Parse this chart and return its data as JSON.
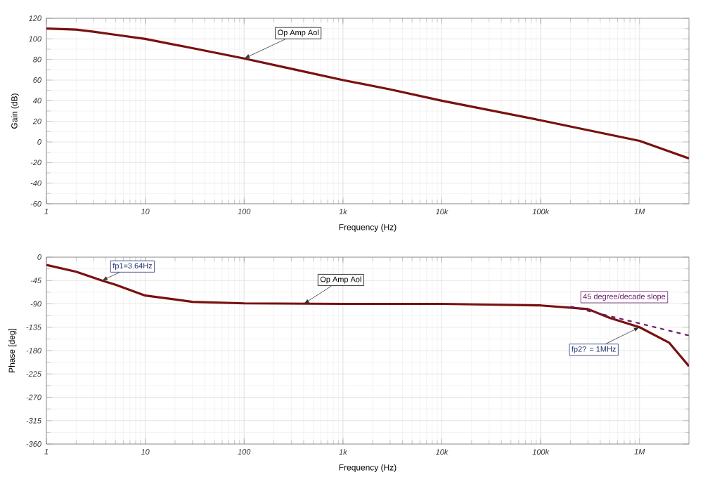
{
  "chart_data": [
    {
      "type": "line",
      "xlabel": "Frequency (Hz)",
      "ylabel": "Gain (dB)",
      "log": "x",
      "grid": true,
      "marker": "none",
      "xlim": [
        1,
        3160000
      ],
      "ylim": [
        -60,
        120
      ],
      "xticks": [
        {
          "value": 1,
          "label": "1"
        },
        {
          "value": 10,
          "label": "10"
        },
        {
          "value": 100,
          "label": "100"
        },
        {
          "value": 1000,
          "label": "1k"
        },
        {
          "value": 10000,
          "label": "10k"
        },
        {
          "value": 100000,
          "label": "100k"
        },
        {
          "value": 1000000,
          "label": "1M"
        }
      ],
      "yticks": [
        -60,
        -40,
        -20,
        0,
        20,
        40,
        60,
        80,
        100,
        120
      ],
      "x": [
        1,
        2,
        3,
        5,
        10,
        30,
        100,
        300,
        1000,
        3000,
        10000,
        100000,
        1000000,
        3160000
      ],
      "series": [
        {
          "color": "#7a1010",
          "values": [
            110,
            109,
            107,
            104,
            100,
            91,
            81,
            71,
            60,
            51,
            40,
            21,
            1,
            -16
          ]
        }
      ],
      "annotations": [
        {
          "text": "Op Amp Aol",
          "x": 100,
          "y": 81
        }
      ]
    },
    {
      "type": "line",
      "xlabel": "Frequency (Hz)",
      "ylabel": "Phase [deg]",
      "log": "x",
      "grid": true,
      "marker": "none",
      "xlim": [
        1,
        3160000
      ],
      "ylim": [
        -360,
        0
      ],
      "xticks": [
        {
          "value": 1,
          "label": "1"
        },
        {
          "value": 10,
          "label": "10"
        },
        {
          "value": 100,
          "label": "100"
        },
        {
          "value": 1000,
          "label": "1k"
        },
        {
          "value": 10000,
          "label": "10k"
        },
        {
          "value": 100000,
          "label": "100k"
        },
        {
          "value": 1000000,
          "label": "1M"
        }
      ],
      "yticks": [
        -360,
        -315,
        -270,
        -225,
        -180,
        -135,
        -90,
        -45,
        0
      ],
      "x": [
        1,
        2,
        3.64,
        5,
        10,
        30,
        100,
        1000,
        10000,
        100000,
        300000,
        500000,
        1000000,
        2000000,
        3160000
      ],
      "series": [
        {
          "color": "#7a1010",
          "values": [
            -15,
            -28,
            -45,
            -53,
            -74,
            -86,
            -89,
            -90,
            -90,
            -93,
            -100,
            -117,
            -135,
            -165,
            -210
          ]
        },
        {
          "color": "#6b1d6b",
          "line_style": "dashed",
          "x": [
            200000,
            3160000
          ],
          "values": [
            -95,
            -151
          ]
        }
      ],
      "annotations": [
        {
          "text": "fp1=3.64Hz",
          "x": 3.64,
          "y": -45
        },
        {
          "text": "Op Amp Aol",
          "x": 400,
          "y": -90
        },
        {
          "text": "fp2? = 1MHz",
          "x": 1000000,
          "y": -135
        },
        {
          "text": "45 degree/decade slope",
          "x": 700000,
          "y": -121
        }
      ]
    }
  ]
}
